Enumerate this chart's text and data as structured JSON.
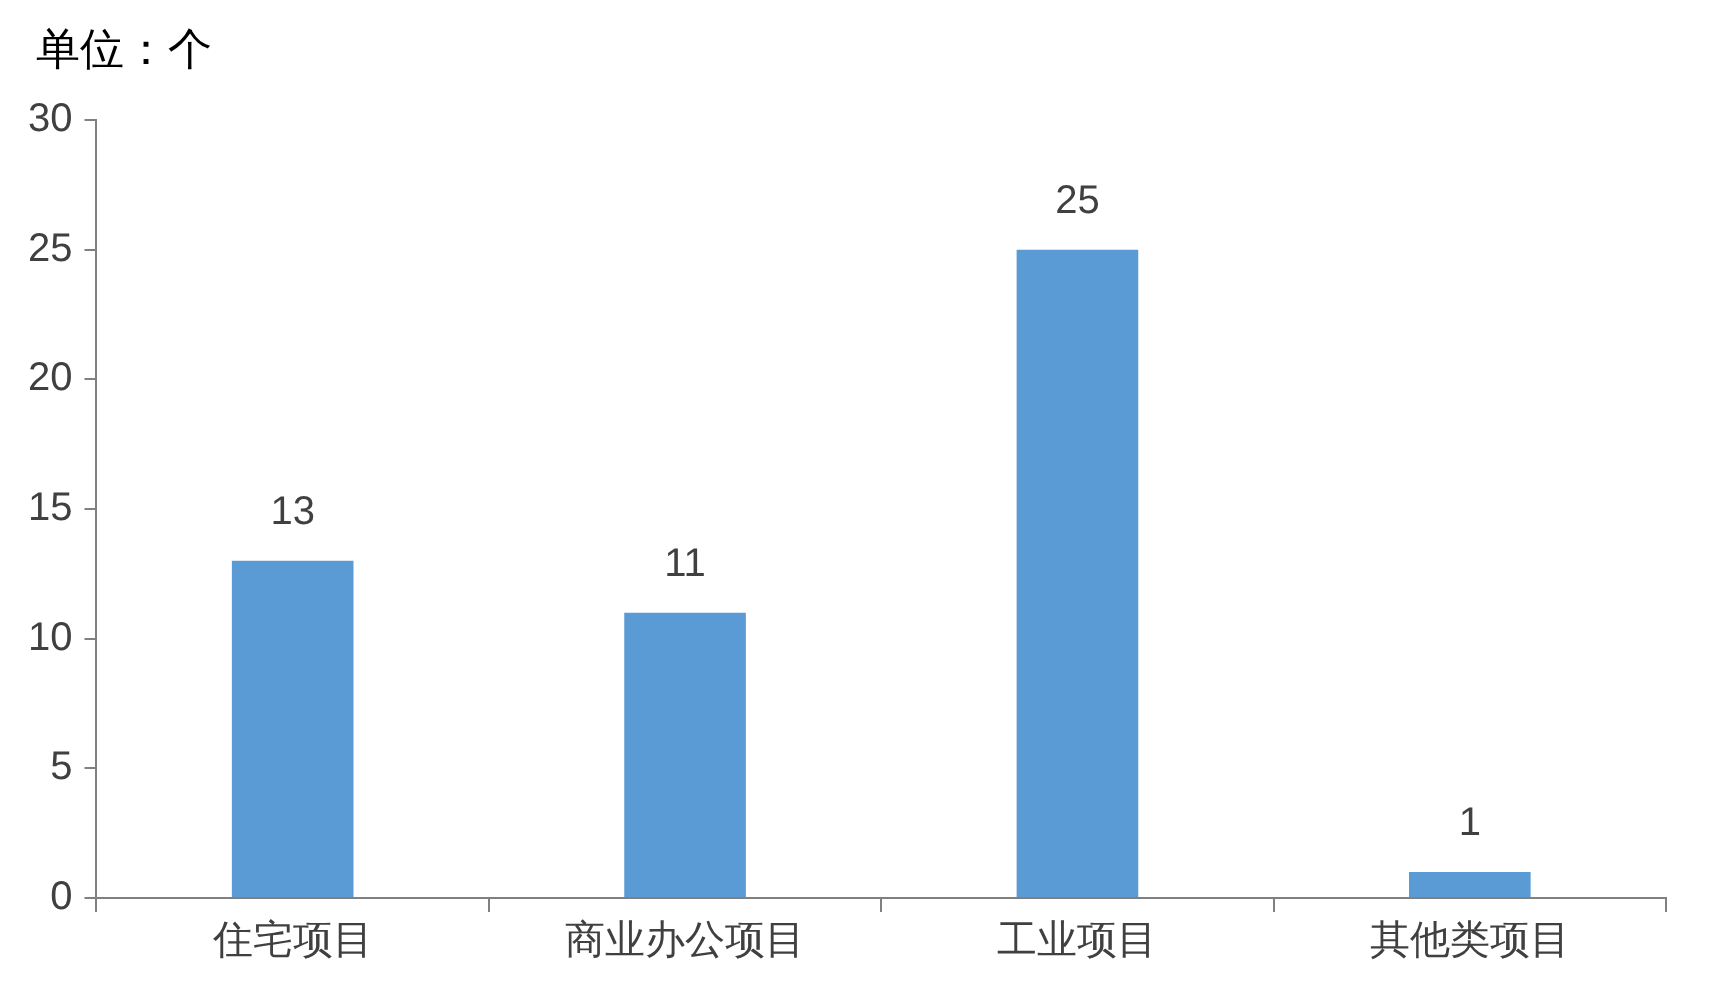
{
  "chart_data": {
    "type": "bar",
    "ylabel": "单位：个",
    "categories": [
      "住宅项目",
      "商业办公项目",
      "工业项目",
      "其他类项目"
    ],
    "values": [
      13,
      11,
      25,
      1
    ],
    "color": "#5b9bd5",
    "ylim": [
      0,
      30
    ],
    "yticks": [
      0,
      5,
      10,
      15,
      20,
      25,
      30
    ],
    "grid": false,
    "legend": false,
    "data_labels": true
  }
}
